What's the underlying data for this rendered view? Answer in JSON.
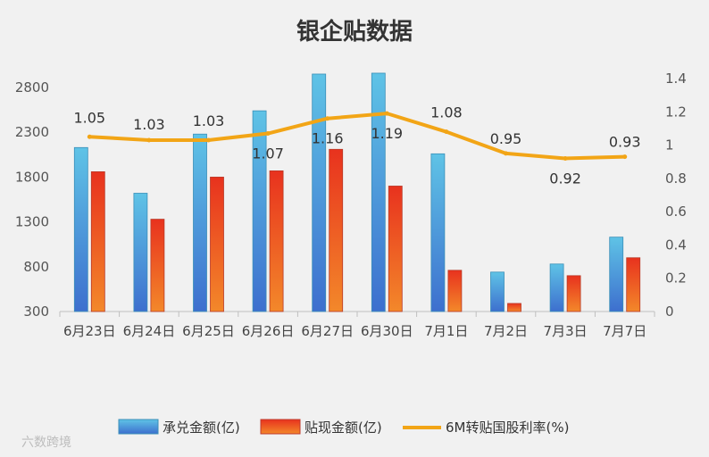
{
  "chart_data": {
    "type": "bar",
    "title": "银企贴数据",
    "categories": [
      "6月23日",
      "6月24日",
      "6月25日",
      "6月26日",
      "6月27日",
      "6月30日",
      "7月1日",
      "7月2日",
      "7月3日",
      "7月7日"
    ],
    "series": [
      {
        "name": "承兑金额(亿)",
        "type": "bar",
        "axis": "left",
        "color_top": "#5fc3e6",
        "color_bottom": "#3d6fce",
        "values": [
          2130,
          1620,
          2280,
          2540,
          2950,
          2960,
          2060,
          740,
          830,
          1130
        ]
      },
      {
        "name": "贴现金额(亿)",
        "type": "bar",
        "axis": "left",
        "color_top": "#e8321e",
        "color_bottom": "#f3882a",
        "values": [
          1860,
          1330,
          1800,
          1870,
          2110,
          1700,
          760,
          390,
          700,
          900
        ]
      },
      {
        "name": "6M转贴国股利率(%)",
        "type": "line",
        "axis": "right",
        "color": "#f2a516",
        "values": [
          1.05,
          1.03,
          1.03,
          1.07,
          1.16,
          1.19,
          1.08,
          0.95,
          0.92,
          0.93
        ]
      }
    ],
    "y_left": {
      "min": 300,
      "max": 2900,
      "ticks": [
        300,
        800,
        1300,
        1800,
        2300,
        2800
      ]
    },
    "y_right": {
      "min": 0,
      "max": 1.4,
      "ticks": [
        "0",
        "0.2",
        "0.4",
        "0.6",
        "0.8",
        "1",
        "1.2",
        "1.4"
      ]
    },
    "line_labels": [
      "1.05",
      "1.03",
      "1.03",
      "1.07",
      "1.16",
      "1.19",
      "1.08",
      "0.95",
      "0.92",
      "0.93"
    ],
    "legend": {
      "position": "bottom"
    }
  },
  "watermark": "六数跨境"
}
